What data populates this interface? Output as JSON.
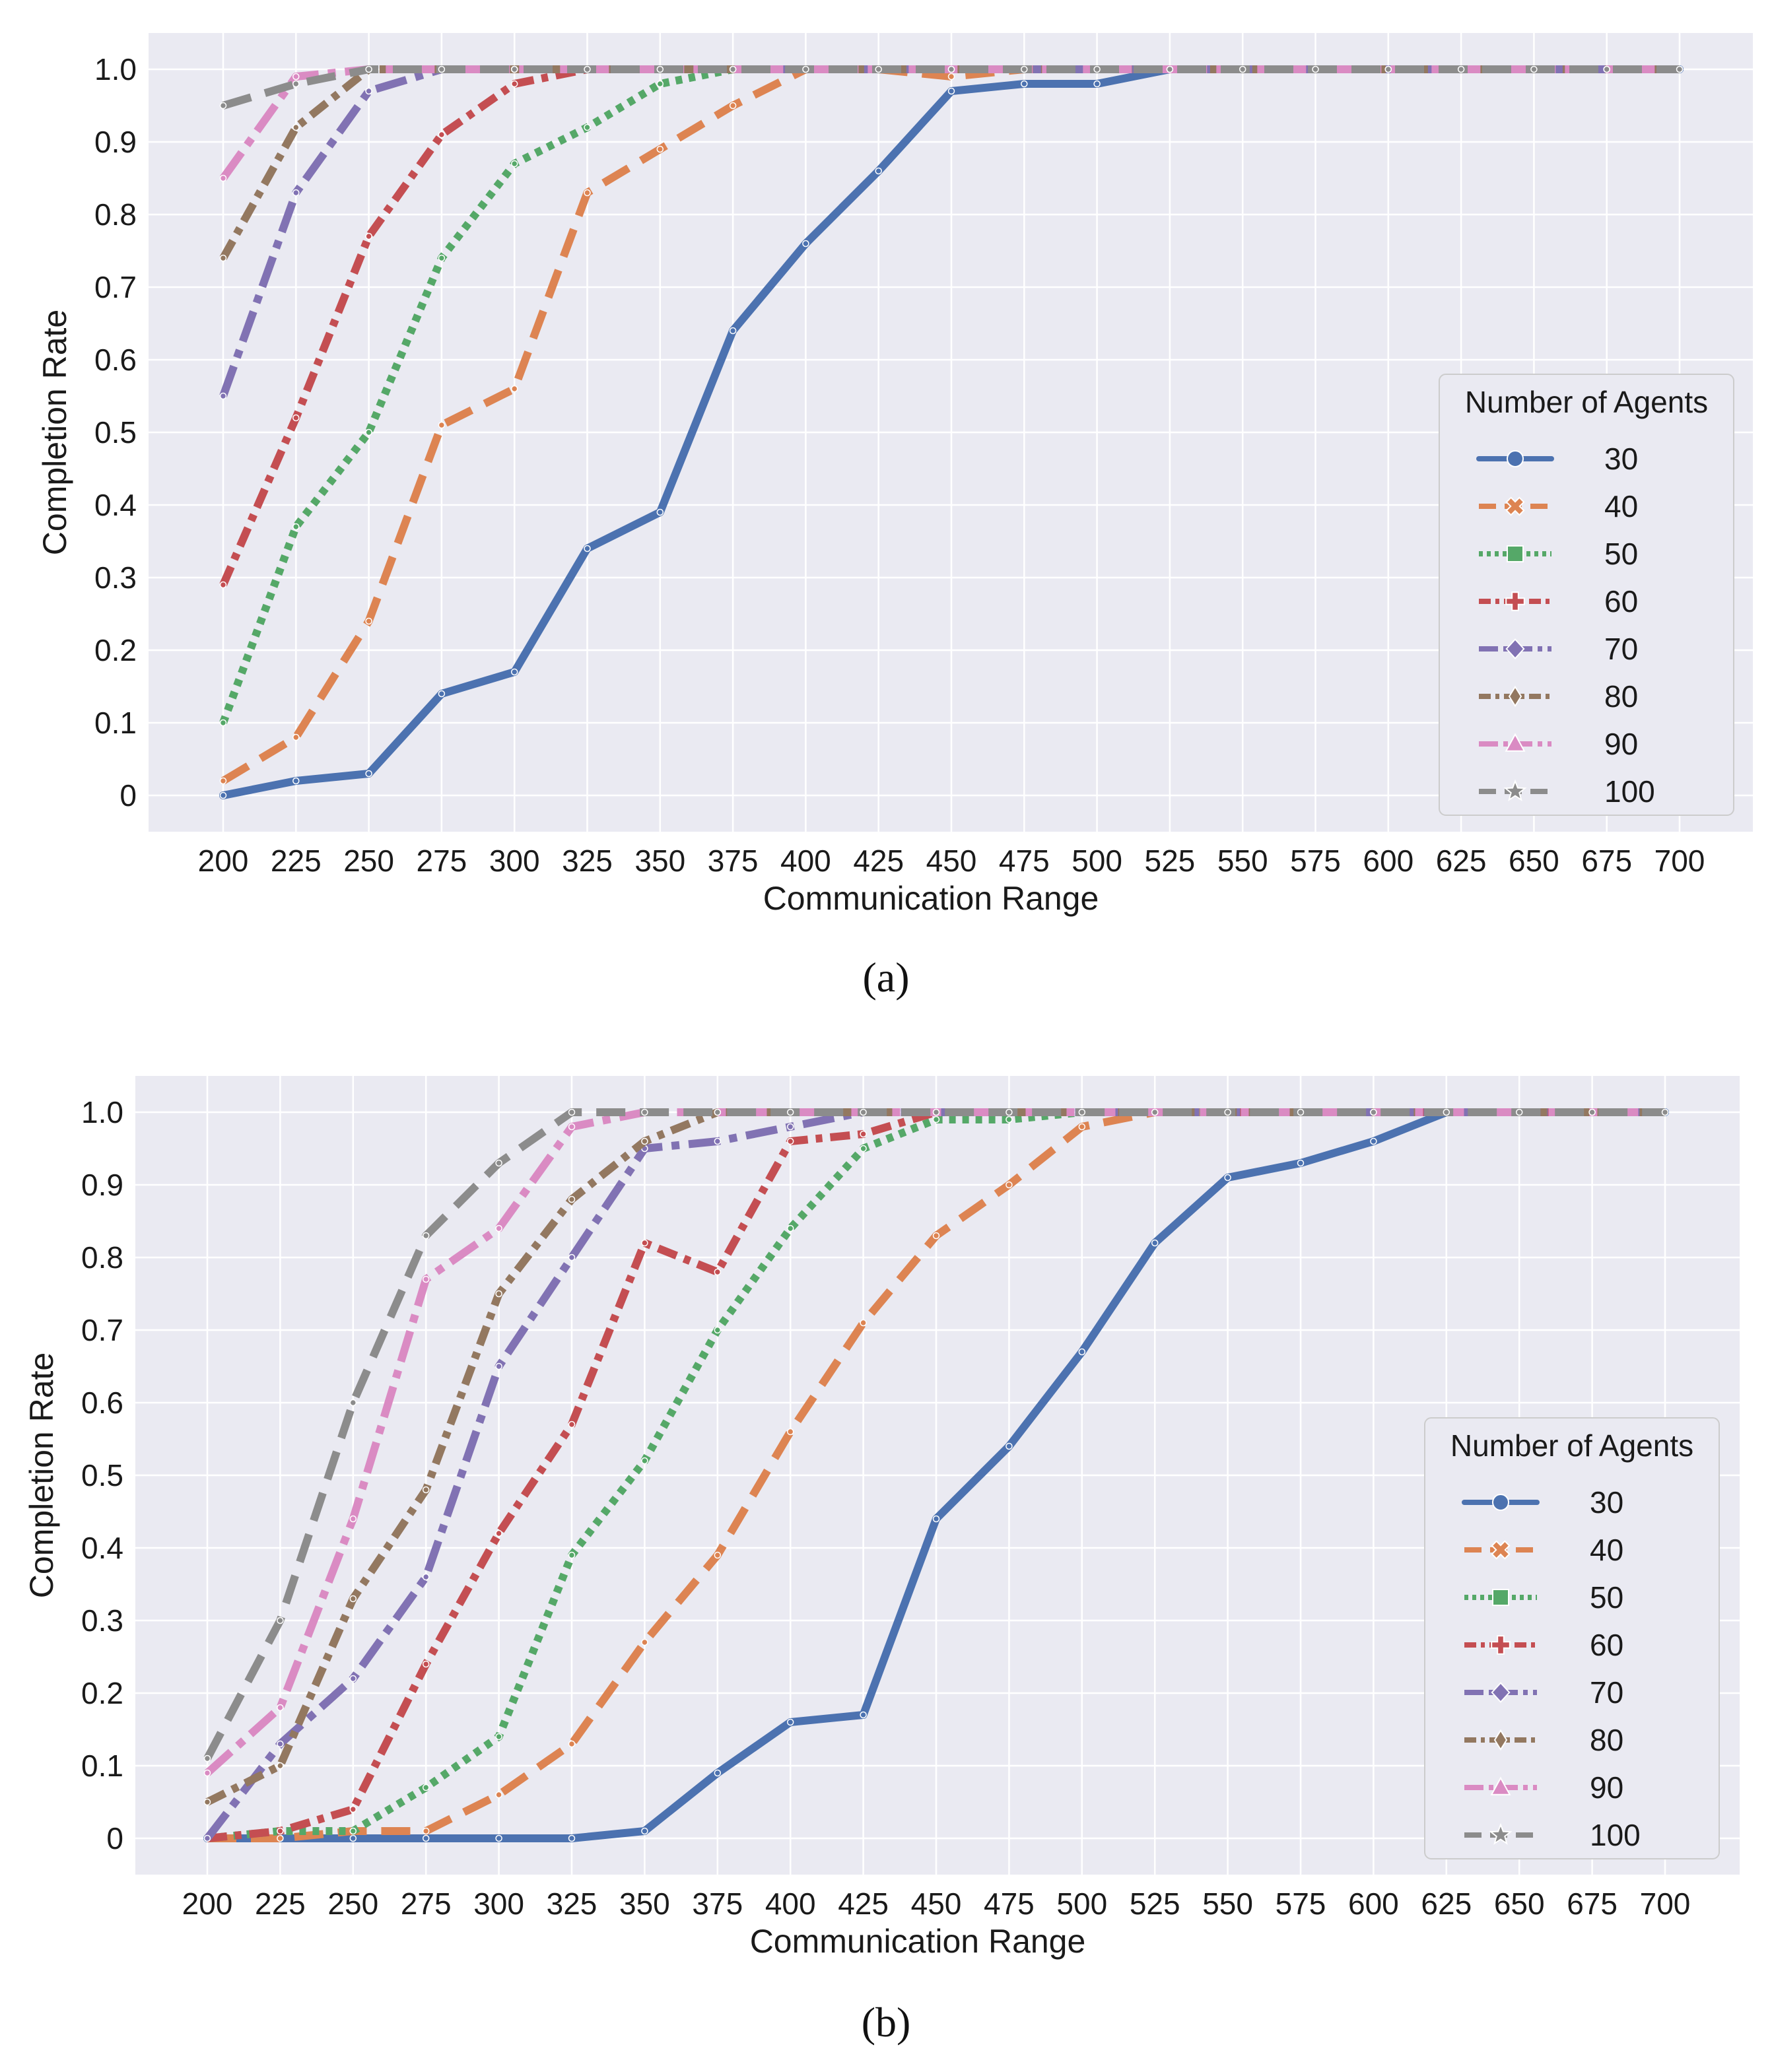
{
  "colors": {
    "background": "#eaeaf2",
    "grid": "#ffffff",
    "legend_bg": "#eaeaf2",
    "legend_border": "#cccccc"
  },
  "series_styles": [
    {
      "name": "30",
      "color": "#4c72b0",
      "dash": "",
      "marker": "circle"
    },
    {
      "name": "40",
      "color": "#dd8452",
      "dash": "44 22",
      "marker": "x-filled"
    },
    {
      "name": "50",
      "color": "#55a868",
      "dash": "10 10",
      "marker": "square"
    },
    {
      "name": "60",
      "color": "#c44e52",
      "dash": "30 12 10 12",
      "marker": "plus-filled"
    },
    {
      "name": "70",
      "color": "#8172b3",
      "dash": "48 14 12 14",
      "marker": "diamond"
    },
    {
      "name": "80",
      "color": "#937860",
      "dash": "30 12 10 12",
      "marker": "thin-diamond"
    },
    {
      "name": "90",
      "color": "#da8bc3",
      "dash": "48 14 12 14",
      "marker": "triangle"
    },
    {
      "name": "100",
      "color": "#8c8c8c",
      "dash": "44 22",
      "marker": "star"
    }
  ],
  "chart_data": [
    {
      "type": "line",
      "panel_label": "(a)",
      "xlabel": "Communication Range",
      "ylabel": "Completion Rate",
      "x": [
        200,
        225,
        250,
        275,
        300,
        325,
        350,
        375,
        400,
        425,
        450,
        475,
        500,
        525,
        550,
        575,
        600,
        625,
        650,
        675,
        700
      ],
      "xticks": [
        "200",
        "225",
        "250",
        "275",
        "300",
        "325",
        "350",
        "375",
        "400",
        "425",
        "450",
        "475",
        "500",
        "525",
        "550",
        "575",
        "600",
        "625",
        "650",
        "675",
        "700"
      ],
      "yticks": [
        "0",
        "0.1",
        "0.2",
        "0.3",
        "0.4",
        "0.5",
        "0.6",
        "0.7",
        "0.8",
        "0.9",
        "1.0"
      ],
      "ylim": [
        -0.05,
        1.05
      ],
      "legend_title": "Number of Agents",
      "legend_position": "center-right",
      "series": [
        {
          "name": "30",
          "values": [
            0.0,
            0.02,
            0.03,
            0.14,
            0.17,
            0.34,
            0.39,
            0.64,
            0.76,
            0.86,
            0.97,
            0.98,
            0.98,
            1.0,
            1.0,
            1.0,
            1.0,
            1.0,
            1.0,
            1.0,
            1.0
          ]
        },
        {
          "name": "40",
          "values": [
            0.02,
            0.08,
            0.24,
            0.51,
            0.56,
            0.83,
            0.89,
            0.95,
            1.0,
            1.0,
            0.99,
            1.0,
            1.0,
            1.0,
            1.0,
            1.0,
            1.0,
            1.0,
            1.0,
            1.0,
            1.0
          ]
        },
        {
          "name": "50",
          "values": [
            0.1,
            0.37,
            0.5,
            0.74,
            0.87,
            0.92,
            0.98,
            1.0,
            1.0,
            1.0,
            1.0,
            1.0,
            1.0,
            1.0,
            1.0,
            1.0,
            1.0,
            1.0,
            1.0,
            1.0,
            1.0
          ]
        },
        {
          "name": "60",
          "values": [
            0.29,
            0.52,
            0.77,
            0.91,
            0.98,
            1.0,
            1.0,
            1.0,
            1.0,
            1.0,
            1.0,
            1.0,
            1.0,
            1.0,
            1.0,
            1.0,
            1.0,
            1.0,
            1.0,
            1.0,
            1.0
          ]
        },
        {
          "name": "70",
          "values": [
            0.55,
            0.83,
            0.97,
            1.0,
            1.0,
            1.0,
            1.0,
            1.0,
            1.0,
            1.0,
            1.0,
            1.0,
            1.0,
            1.0,
            1.0,
            1.0,
            1.0,
            1.0,
            1.0,
            1.0,
            1.0
          ]
        },
        {
          "name": "80",
          "values": [
            0.74,
            0.92,
            1.0,
            1.0,
            1.0,
            1.0,
            1.0,
            1.0,
            1.0,
            1.0,
            1.0,
            1.0,
            1.0,
            1.0,
            1.0,
            1.0,
            1.0,
            1.0,
            1.0,
            1.0,
            1.0
          ]
        },
        {
          "name": "90",
          "values": [
            0.85,
            0.99,
            1.0,
            1.0,
            1.0,
            1.0,
            1.0,
            1.0,
            1.0,
            1.0,
            1.0,
            1.0,
            1.0,
            1.0,
            1.0,
            1.0,
            1.0,
            1.0,
            1.0,
            1.0,
            1.0
          ]
        },
        {
          "name": "100",
          "values": [
            0.95,
            0.98,
            1.0,
            1.0,
            1.0,
            1.0,
            1.0,
            1.0,
            1.0,
            1.0,
            1.0,
            1.0,
            1.0,
            1.0,
            1.0,
            1.0,
            1.0,
            1.0,
            1.0,
            1.0,
            1.0
          ]
        }
      ]
    },
    {
      "type": "line",
      "panel_label": "(b)",
      "xlabel": "Communication Range",
      "ylabel": "Completion Rate",
      "x": [
        200,
        225,
        250,
        275,
        300,
        325,
        350,
        375,
        400,
        425,
        450,
        475,
        500,
        525,
        550,
        575,
        600,
        625,
        650,
        675,
        700
      ],
      "xticks": [
        "200",
        "225",
        "250",
        "275",
        "300",
        "325",
        "350",
        "375",
        "400",
        "425",
        "450",
        "475",
        "500",
        "525",
        "550",
        "575",
        "600",
        "625",
        "650",
        "675",
        "700"
      ],
      "yticks": [
        "0",
        "0.1",
        "0.2",
        "0.3",
        "0.4",
        "0.5",
        "0.6",
        "0.7",
        "0.8",
        "0.9",
        "1.0"
      ],
      "ylim": [
        -0.05,
        1.05
      ],
      "legend_title": "Number of Agents",
      "legend_position": "center-right",
      "series": [
        {
          "name": "30",
          "values": [
            0.0,
            0.0,
            0.0,
            0.0,
            0.0,
            0.0,
            0.01,
            0.09,
            0.16,
            0.17,
            0.44,
            0.54,
            0.67,
            0.82,
            0.91,
            0.93,
            0.96,
            1.0,
            1.0,
            1.0,
            1.0
          ]
        },
        {
          "name": "40",
          "values": [
            0.0,
            0.0,
            0.01,
            0.01,
            0.06,
            0.13,
            0.27,
            0.39,
            0.56,
            0.71,
            0.83,
            0.9,
            0.98,
            1.0,
            1.0,
            1.0,
            1.0,
            1.0,
            1.0,
            1.0,
            1.0
          ]
        },
        {
          "name": "50",
          "values": [
            0.0,
            0.01,
            0.01,
            0.07,
            0.14,
            0.39,
            0.52,
            0.7,
            0.84,
            0.95,
            0.99,
            0.99,
            1.0,
            1.0,
            1.0,
            1.0,
            1.0,
            1.0,
            1.0,
            1.0,
            1.0
          ]
        },
        {
          "name": "60",
          "values": [
            0.0,
            0.01,
            0.04,
            0.24,
            0.42,
            0.57,
            0.82,
            0.78,
            0.96,
            0.97,
            1.0,
            1.0,
            1.0,
            1.0,
            1.0,
            1.0,
            1.0,
            1.0,
            1.0,
            1.0,
            1.0
          ]
        },
        {
          "name": "70",
          "values": [
            0.0,
            0.13,
            0.22,
            0.36,
            0.65,
            0.8,
            0.95,
            0.96,
            0.98,
            1.0,
            1.0,
            1.0,
            1.0,
            1.0,
            1.0,
            1.0,
            1.0,
            1.0,
            1.0,
            1.0,
            1.0
          ]
        },
        {
          "name": "80",
          "values": [
            0.05,
            0.1,
            0.33,
            0.48,
            0.75,
            0.88,
            0.96,
            1.0,
            1.0,
            1.0,
            1.0,
            1.0,
            1.0,
            1.0,
            1.0,
            1.0,
            1.0,
            1.0,
            1.0,
            1.0,
            1.0
          ]
        },
        {
          "name": "90",
          "values": [
            0.09,
            0.18,
            0.44,
            0.77,
            0.84,
            0.98,
            1.0,
            1.0,
            1.0,
            1.0,
            1.0,
            1.0,
            1.0,
            1.0,
            1.0,
            1.0,
            1.0,
            1.0,
            1.0,
            1.0,
            1.0
          ]
        },
        {
          "name": "100",
          "values": [
            0.11,
            0.3,
            0.6,
            0.83,
            0.93,
            1.0,
            1.0,
            1.0,
            1.0,
            1.0,
            1.0,
            1.0,
            1.0,
            1.0,
            1.0,
            1.0,
            1.0,
            1.0,
            1.0,
            1.0,
            1.0
          ]
        }
      ]
    }
  ]
}
